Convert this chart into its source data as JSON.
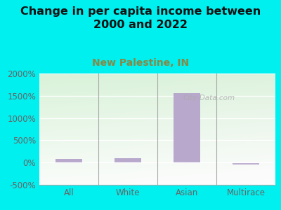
{
  "title": "Change in per capita income between\n2000 and 2022",
  "subtitle": "New Palestine, IN",
  "categories": [
    "All",
    "White",
    "Asian",
    "Multirace"
  ],
  "values": [
    75,
    90,
    1560,
    -50
  ],
  "bar_color": "#b8a8cc",
  "background_color": "#00EFEF",
  "plot_bg_color": "#ddeedd",
  "title_fontsize": 11.5,
  "subtitle_fontsize": 10,
  "tick_fontsize": 8.5,
  "ylim": [
    -500,
    2000
  ],
  "yticks": [
    -500,
    0,
    500,
    1000,
    1500,
    2000
  ],
  "watermark": "City-Data.com",
  "title_color": "#111111",
  "subtitle_color": "#888844",
  "tick_color": "#666666"
}
